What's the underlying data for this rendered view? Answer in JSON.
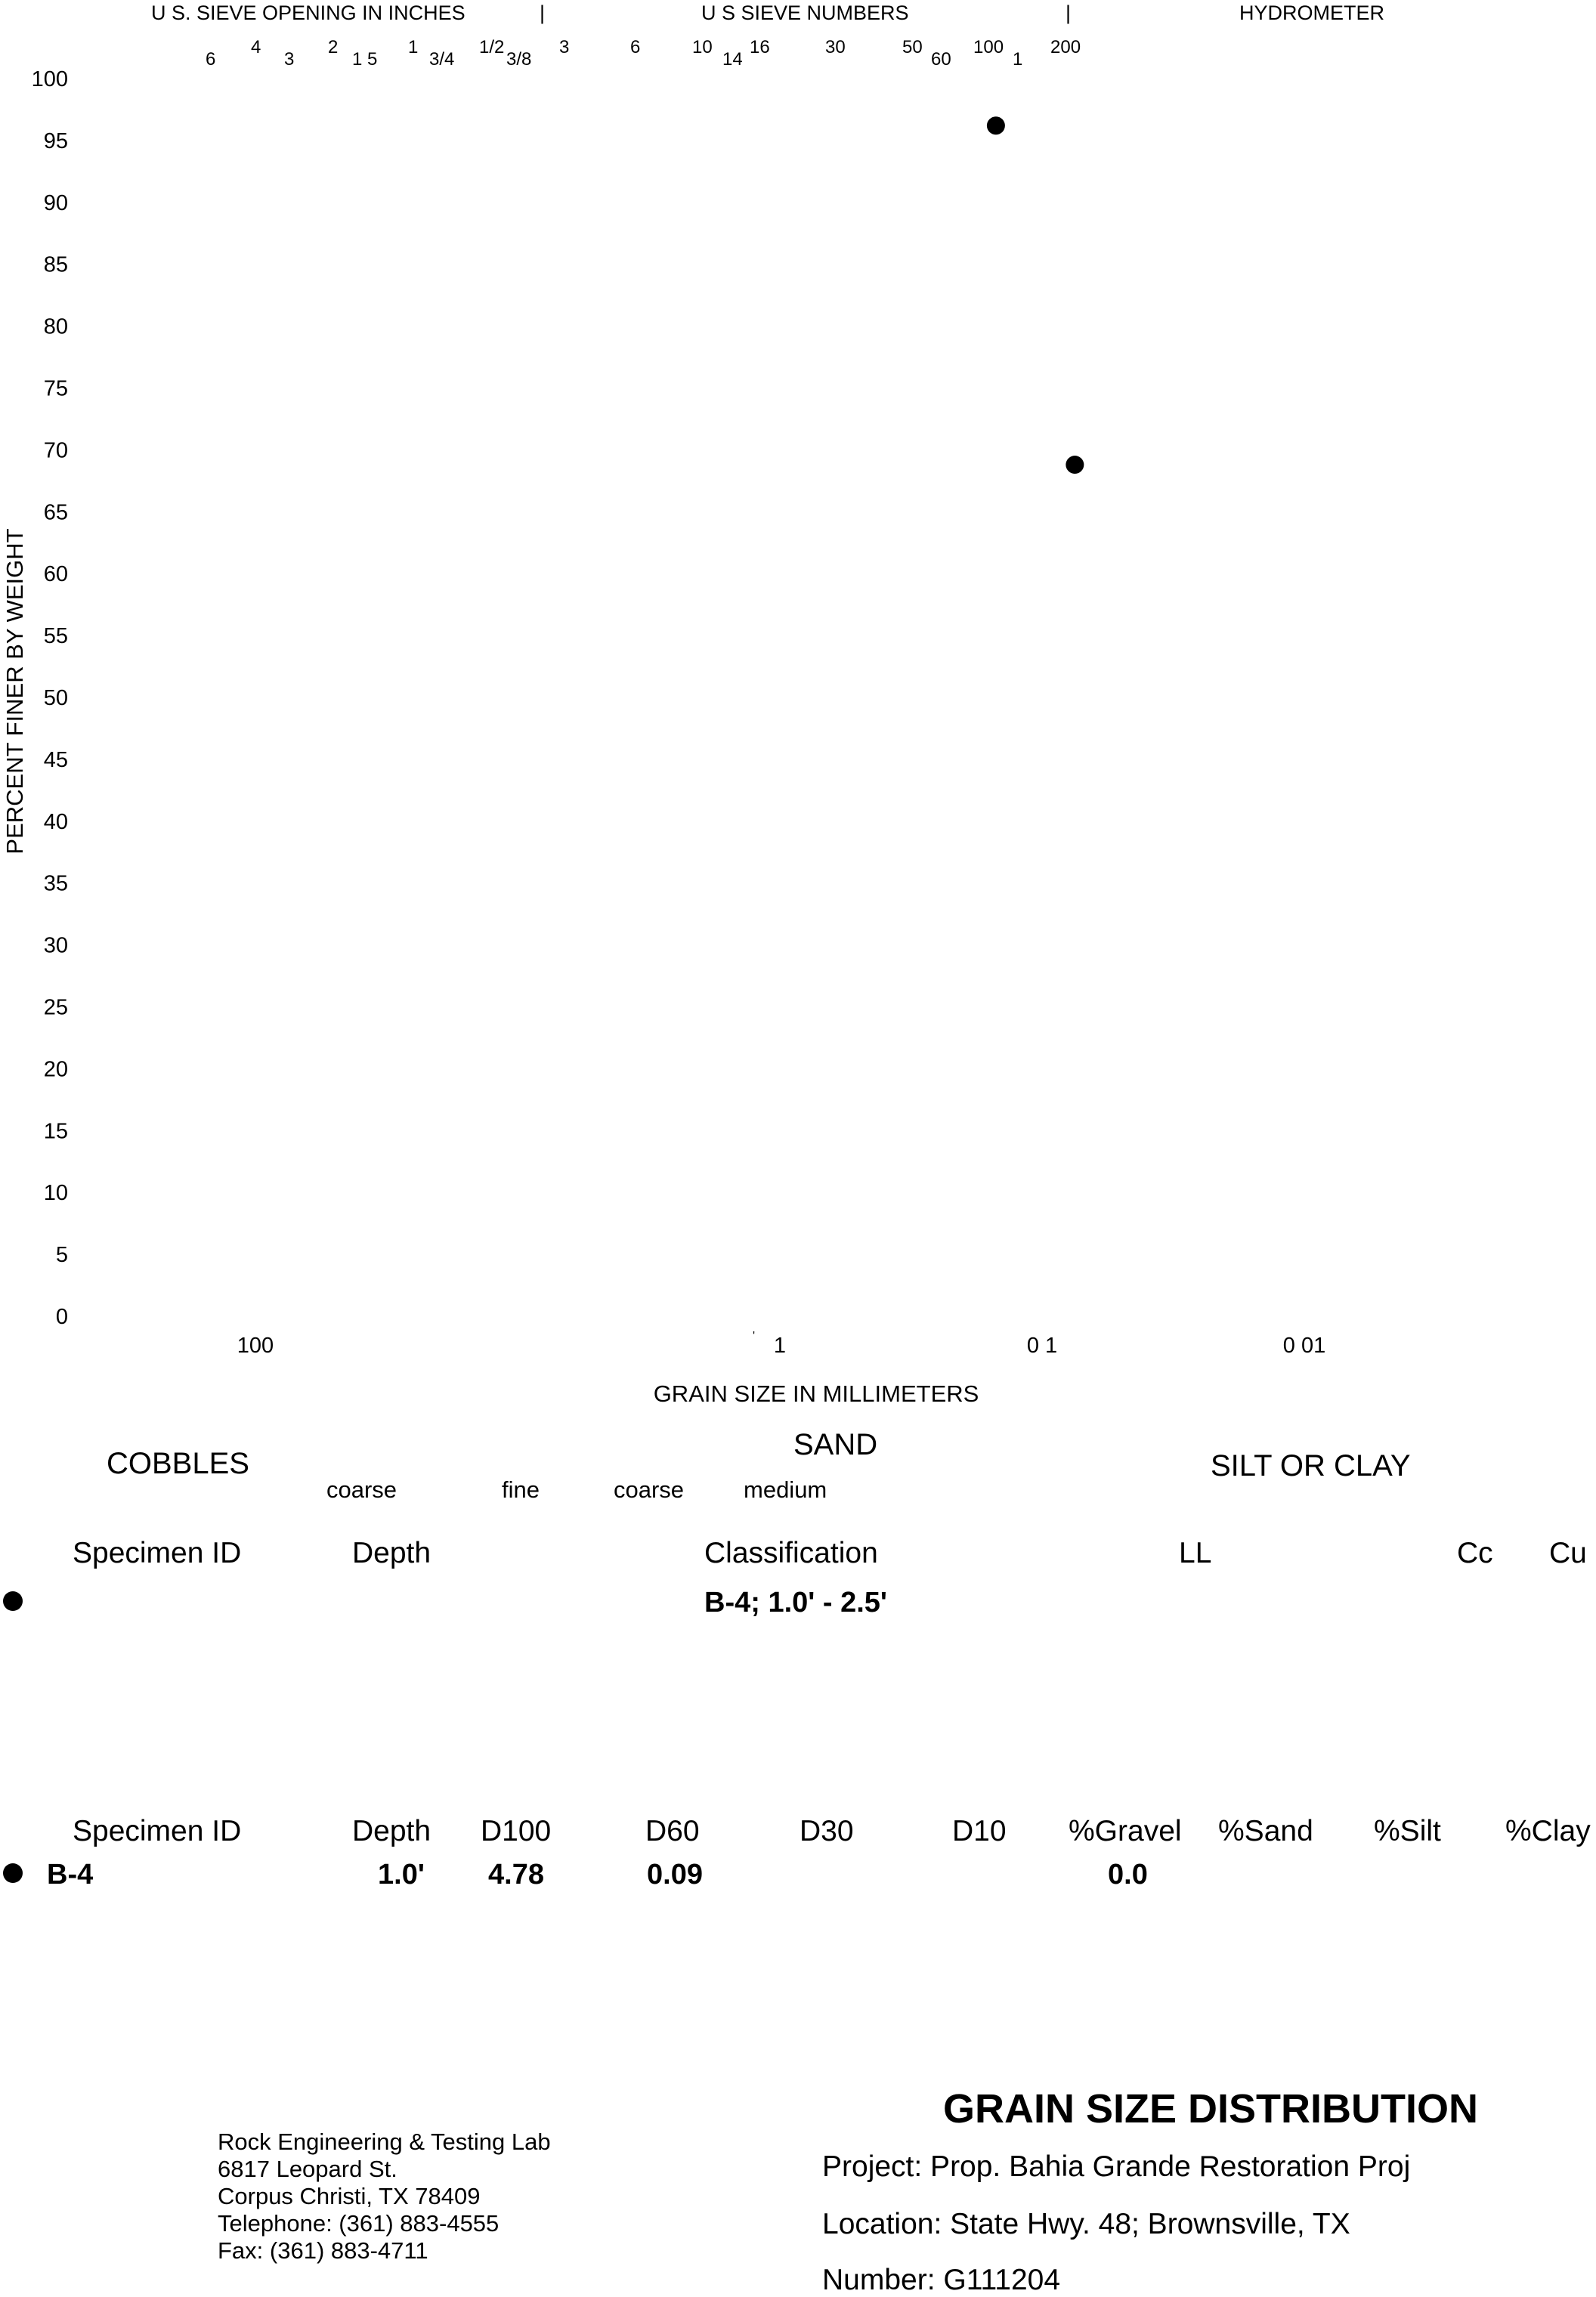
{
  "chart_data": {
    "type": "scatter",
    "xscale": "log",
    "xaxis_reversed": true,
    "xlim": [
      500,
      0.001
    ],
    "ylim": [
      0,
      100
    ],
    "xlabel": "GRAIN SIZE IN MILLIMETERS",
    "ylabel": "PERCENT FINER BY WEIGHT",
    "yticks": [
      "100",
      "95",
      "90",
      "85",
      "80",
      "75",
      "70",
      "65",
      "60",
      "55",
      "50",
      "45",
      "40",
      "35",
      "30",
      "25",
      "20",
      "15",
      "10",
      "5",
      "0"
    ],
    "xticks": [
      {
        "label": "100",
        "value": 100
      },
      {
        "label": "1",
        "value": 1
      },
      {
        "label": "0 1",
        "value": 0.1
      },
      {
        "label": "0 01",
        "value": 0.01
      }
    ],
    "series": [
      {
        "name": "B-4",
        "marker": "circle",
        "points": [
          {
            "x": 0.15,
            "y": 96.2
          },
          {
            "x": 0.075,
            "y": 68.8
          }
        ]
      }
    ],
    "top_headers": {
      "inches": "U S. SIEVE OPENING IN INCHES",
      "numbers": "U S  SIEVE NUMBERS",
      "hydrometer": "HYDROMETER",
      "sep1": "|",
      "sep2": "|"
    },
    "sieve_labels": [
      "6",
      "4",
      "3",
      "2",
      "1 5",
      "1",
      "3/4",
      "1/2",
      "3/8",
      "3",
      "6",
      "10",
      "14",
      "16",
      "30",
      "50",
      "60",
      "100",
      "1",
      "200"
    ],
    "zones": {
      "cobbles": "COBBLES",
      "gravel_coarse": "coarse",
      "gravel_fine": "fine",
      "sand": "SAND",
      "sand_coarse": "coarse",
      "sand_medium": "medium",
      "silt_clay": "SILT OR CLAY"
    }
  },
  "table1": {
    "headers": [
      "Specimen ID",
      "Depth",
      "Classification",
      "LL",
      "Cc",
      "Cu"
    ],
    "row": {
      "classification": "B-4; 1.0' - 2.5'"
    }
  },
  "table2": {
    "headers": [
      "Specimen ID",
      "Depth",
      "D100",
      "D60",
      "D30",
      "D10",
      "%Gravel",
      "%Sand",
      "%Silt",
      "%Clay"
    ],
    "row": {
      "id": "B-4",
      "depth": "1.0'",
      "d100": "4.78",
      "d60": "0.09",
      "gravel": "0.0"
    }
  },
  "footer": {
    "title": "GRAIN SIZE DISTRIBUTION",
    "project": "Project:  Prop. Bahia Grande Restoration Proj",
    "location": "Location:  State Hwy. 48; Brownsville, TX",
    "number": "Number:  G111204",
    "lab": {
      "name": "Rock Engineering & Testing Lab",
      "street": "6817 Leopard St.",
      "city": "Corpus Christi, TX 78409",
      "phone": "Telephone:  (361) 883-4555",
      "fax": "Fax:  (361) 883-4711"
    }
  }
}
